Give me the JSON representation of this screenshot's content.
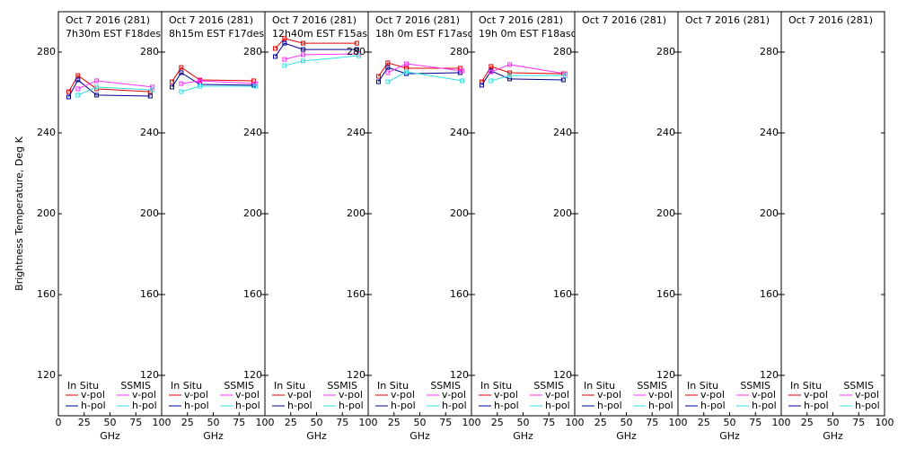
{
  "chart_data": {
    "type": "line",
    "ylabel": "Brightness Temperature, Deg K",
    "xlabel": "GHz",
    "ylim": [
      100,
      300
    ],
    "yticks": [
      120,
      160,
      200,
      240,
      280
    ],
    "xlim": [
      0,
      100
    ],
    "panels": [
      {
        "title": "Oct 7 2016 (281)",
        "subtitle": "7h30m EST F18des",
        "xticks": [
          0,
          25,
          50,
          75,
          100
        ],
        "groups": [
          {
            "title": "In Situ",
            "x": [
              10,
              19,
              37,
              89
            ],
            "series": [
              {
                "name": "v-pol",
                "color": "#e00000",
                "values": [
                  260.4,
                  268.4,
                  261.8,
                  260.4
                ]
              },
              {
                "name": "h-pol",
                "color": "#000090",
                "values": [
                  257.8,
                  266.2,
                  258.7,
                  258.2
                ]
              }
            ]
          },
          {
            "title": "SSMIS",
            "x": [
              19,
              37,
              91
            ],
            "series": [
              {
                "name": "v-pol",
                "color": "#ff30ff",
                "values": [
                  261.8,
                  265.8,
                  262.7
                ]
              },
              {
                "name": "h-pol",
                "color": "#30e0e0",
                "values": [
                  258.7,
                  262.7,
                  261.3
                ]
              }
            ]
          }
        ]
      },
      {
        "title": "Oct 7 2016 (281)",
        "subtitle": "8h15m EST F17des",
        "xticks": [
          25,
          50,
          75,
          100
        ],
        "groups": [
          {
            "title": "In Situ",
            "x": [
              10,
              19,
              37,
              89
            ],
            "series": [
              {
                "name": "v-pol",
                "color": "#e00000",
                "values": [
                  265.3,
                  272.4,
                  266.2,
                  265.8
                ]
              },
              {
                "name": "h-pol",
                "color": "#000090",
                "values": [
                  262.7,
                  269.8,
                  264,
                  263.6
                ]
              }
            ]
          },
          {
            "title": "SSMIS",
            "x": [
              19,
              37,
              91
            ],
            "series": [
              {
                "name": "v-pol",
                "color": "#ff30ff",
                "values": [
                  264.4,
                  265.8,
                  264.4
                ]
              },
              {
                "name": "h-pol",
                "color": "#30e0e0",
                "values": [
                  260.4,
                  263.1,
                  263.1
                ]
              }
            ]
          }
        ]
      },
      {
        "title": "Oct 7 2016 (281)",
        "subtitle": "12h40m EST F15asc",
        "xticks": [
          25,
          50,
          75,
          100
        ],
        "groups": [
          {
            "title": "In Situ",
            "x": [
              10,
              19,
              37,
              89
            ],
            "series": [
              {
                "name": "v-pol",
                "color": "#e00000",
                "values": [
                  281.8,
                  286.7,
                  284.4,
                  284.4
                ]
              },
              {
                "name": "h-pol",
                "color": "#000090",
                "values": [
                  277.8,
                  284.4,
                  281.3,
                  281.3
                ]
              }
            ]
          },
          {
            "title": "SSMIS",
            "x": [
              19,
              37,
              91
            ],
            "series": [
              {
                "name": "v-pol",
                "color": "#ff30ff",
                "values": [
                  276.4,
                  278.7,
                  279.1
                ]
              },
              {
                "name": "h-pol",
                "color": "#30e0e0",
                "values": [
                  273.3,
                  275.6,
                  278.2
                ]
              }
            ]
          }
        ]
      },
      {
        "title": "Oct 7 2016 (281)",
        "subtitle": "18h 0m EST F17asc",
        "xticks": [
          25,
          50,
          75,
          100
        ],
        "groups": [
          {
            "title": "In Situ",
            "x": [
              10,
              19,
              37,
              89
            ],
            "series": [
              {
                "name": "v-pol",
                "color": "#e00000",
                "values": [
                  268,
                  274.7,
                  272,
                  272
                ]
              },
              {
                "name": "h-pol",
                "color": "#000090",
                "values": [
                  265.3,
                  272.4,
                  269.3,
                  269.8
                ]
              }
            ]
          },
          {
            "title": "SSMIS",
            "x": [
              19,
              37,
              91
            ],
            "series": [
              {
                "name": "v-pol",
                "color": "#ff30ff",
                "values": [
                  269.8,
                  274.2,
                  270.7
                ]
              },
              {
                "name": "h-pol",
                "color": "#30e0e0",
                "values": [
                  265.3,
                  270.2,
                  265.8
                ]
              }
            ]
          }
        ]
      },
      {
        "title": "Oct 7 2016 (281)",
        "subtitle": "19h 0m EST F18asc",
        "xticks": [
          25,
          50,
          75,
          100
        ],
        "groups": [
          {
            "title": "In Situ",
            "x": [
              10,
              19,
              37,
              89
            ],
            "series": [
              {
                "name": "v-pol",
                "color": "#e00000",
                "values": [
                  265.3,
                  272.9,
                  269.8,
                  269.3
                ]
              },
              {
                "name": "h-pol",
                "color": "#000090",
                "values": [
                  263.6,
                  270.7,
                  266.7,
                  266.2
                ]
              }
            ]
          },
          {
            "title": "SSMIS",
            "x": [
              19,
              37,
              91
            ],
            "series": [
              {
                "name": "v-pol",
                "color": "#ff30ff",
                "values": [
                  270.2,
                  273.8,
                  269.3
                ]
              },
              {
                "name": "h-pol",
                "color": "#30e0e0",
                "values": [
                  265.8,
                  268.4,
                  268.4
                ]
              }
            ]
          }
        ]
      },
      {
        "title": "Oct 7 2016 (281)",
        "xticks": [
          25,
          50,
          75,
          100
        ],
        "groups": [
          {
            "title": "In Situ",
            "x": [],
            "series": [
              {
                "name": "v-pol",
                "color": "#e00000",
                "values": []
              },
              {
                "name": "h-pol",
                "color": "#000090",
                "values": []
              }
            ]
          },
          {
            "title": "SSMIS",
            "x": [],
            "series": [
              {
                "name": "v-pol",
                "color": "#ff30ff",
                "values": []
              },
              {
                "name": "h-pol",
                "color": "#30e0e0",
                "values": []
              }
            ]
          }
        ]
      },
      {
        "title": "Oct 7 2016 (281)",
        "xticks": [
          25,
          50,
          75,
          100
        ],
        "groups": [
          {
            "title": "In Situ",
            "x": [],
            "series": [
              {
                "name": "v-pol",
                "color": "#e00000",
                "values": []
              },
              {
                "name": "h-pol",
                "color": "#000090",
                "values": []
              }
            ]
          },
          {
            "title": "SSMIS",
            "x": [],
            "series": [
              {
                "name": "v-pol",
                "color": "#ff30ff",
                "values": []
              },
              {
                "name": "h-pol",
                "color": "#30e0e0",
                "values": []
              }
            ]
          }
        ]
      },
      {
        "title": "Oct 7 2016 (281)",
        "xticks": [
          25,
          50,
          75,
          100
        ],
        "groups": [
          {
            "title": "In Situ",
            "x": [],
            "series": [
              {
                "name": "v-pol",
                "color": "#e00000",
                "values": []
              },
              {
                "name": "h-pol",
                "color": "#000090",
                "values": []
              }
            ]
          },
          {
            "title": "SSMIS",
            "x": [],
            "series": [
              {
                "name": "v-pol",
                "color": "#ff30ff",
                "values": []
              },
              {
                "name": "h-pol",
                "color": "#30e0e0",
                "values": []
              }
            ]
          }
        ]
      }
    ]
  }
}
